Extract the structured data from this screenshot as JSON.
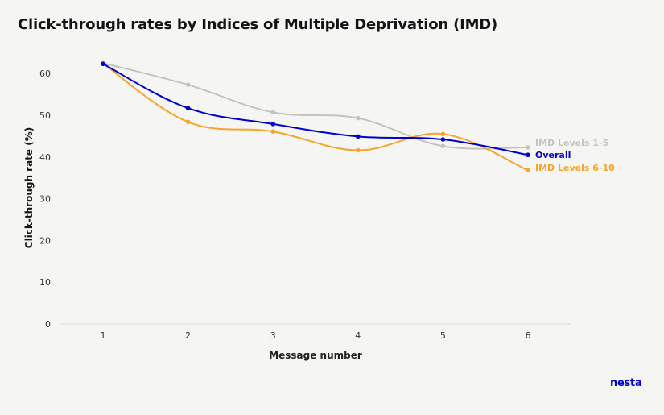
{
  "chart_data": {
    "type": "line",
    "title": "Click-through rates by Indices of Multiple Deprivation (IMD)",
    "xlabel": "Message number",
    "ylabel": "Click-through rate (%)",
    "x": [
      1,
      2,
      3,
      4,
      5,
      6
    ],
    "x_tick_labels": [
      "1",
      "2",
      "3",
      "4",
      "5",
      "6"
    ],
    "y_tick_labels": [
      "0",
      "10",
      "20",
      "30",
      "40",
      "50",
      "60"
    ],
    "ylim": [
      0,
      60
    ],
    "grid": false,
    "legend": "direct labels at line ends",
    "series": [
      {
        "name": "IMD Levels 1-5",
        "color": "#c8c3ba",
        "values": [
          62.5,
          57.3,
          50.7,
          49.3,
          42.6,
          42.3
        ]
      },
      {
        "name": "Overall",
        "color": "#0000cc",
        "values": [
          62.3,
          51.7,
          47.9,
          44.9,
          44.2,
          40.5
        ]
      },
      {
        "name": "IMD Levels 6-10",
        "color": "#f6a42c",
        "values": [
          62.4,
          48.4,
          46.1,
          41.6,
          45.5,
          36.8
        ]
      }
    ]
  },
  "brand": {
    "logo_text": "nesta",
    "logo_color": "#0000cc"
  }
}
